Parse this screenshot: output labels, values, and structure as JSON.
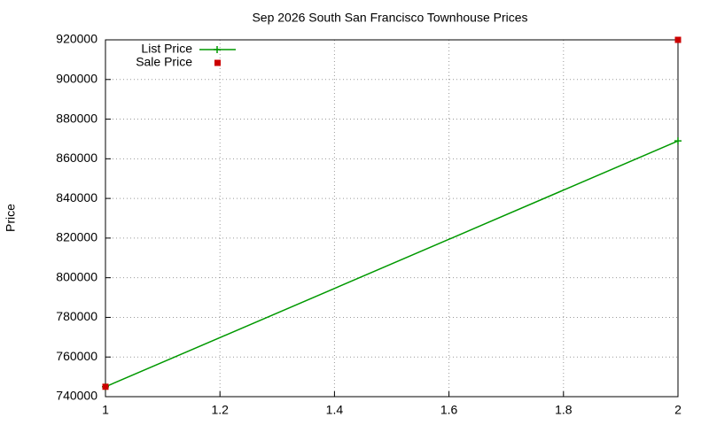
{
  "chart_data": {
    "type": "line",
    "title": "Sep 2026 South San Francisco Townhouse Prices",
    "ylabel": "Price",
    "x": [
      1,
      2
    ],
    "series": [
      {
        "name": "List Price",
        "color": "#009900",
        "values": [
          745000,
          869000
        ],
        "line": true,
        "marker": "plus"
      },
      {
        "name": "Sale Price",
        "color": "#cc0000",
        "values": [
          745000,
          920000
        ],
        "line": false,
        "marker": "square"
      }
    ],
    "xlim": [
      1,
      2
    ],
    "xticks": [
      1,
      1.2,
      1.4,
      1.6,
      1.8,
      2
    ],
    "ylim": [
      740000,
      920000
    ],
    "yticks": [
      740000,
      760000,
      780000,
      800000,
      820000,
      840000,
      860000,
      880000,
      900000,
      920000
    ],
    "grid": true,
    "legend": "top-left"
  }
}
